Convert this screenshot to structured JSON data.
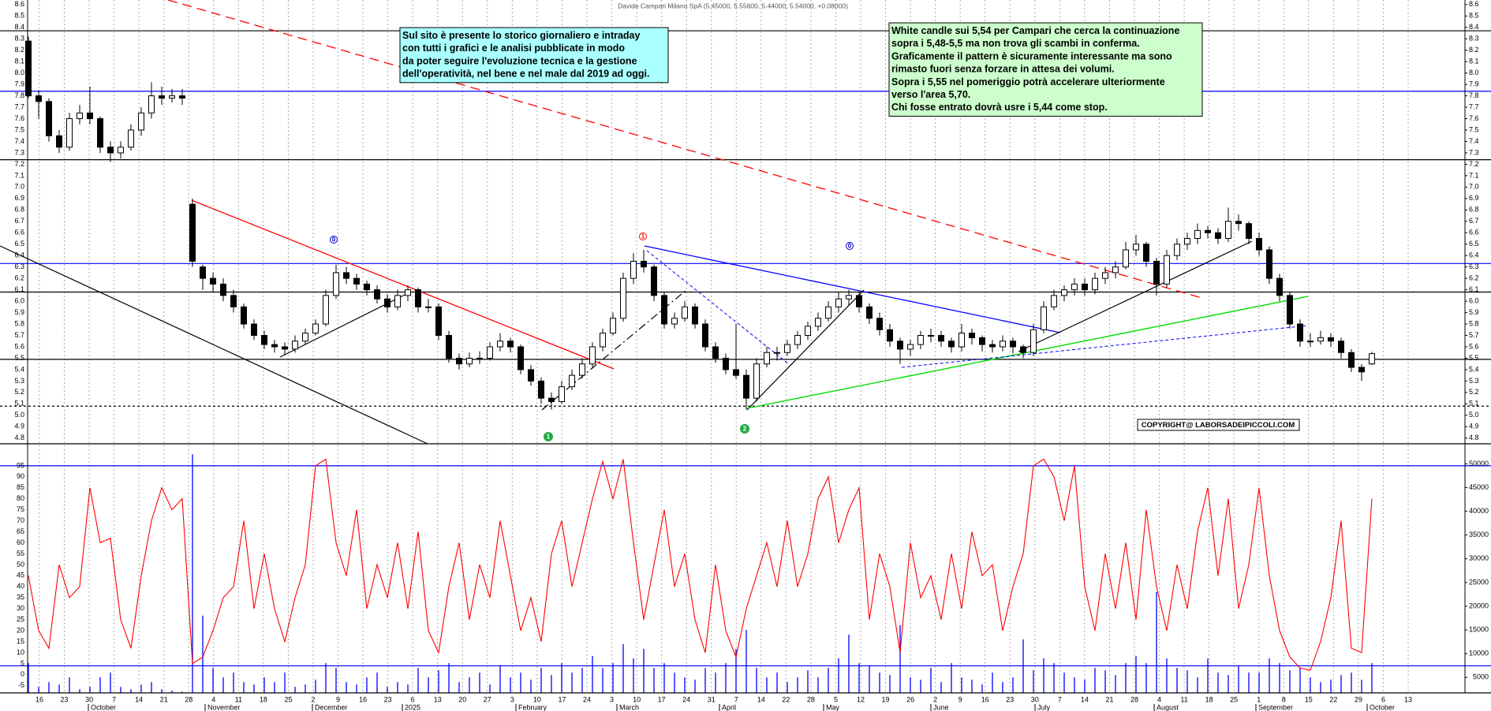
{
  "chart_data": {
    "type": "candlestick",
    "title": "Davide Campari Milano SpA (5.45000, 5.55600, 5.44000, 5.54000, +0.08000)",
    "up_color": "#ffffff",
    "down_color": "#000000",
    "ylim": [
      4.75,
      8.64
    ],
    "yticks": [
      4.8,
      4.9,
      {
        "value": 5.0,
        "label": "5.0"
      },
      5.1,
      5.2,
      5.3,
      5.4,
      5.5,
      5.6,
      5.7,
      5.8,
      5.9,
      {
        "value": 6.0,
        "label": "6.0"
      },
      6.1,
      6.2,
      6.3,
      6.4,
      6.5,
      6.6,
      6.7,
      6.8,
      6.9,
      {
        "value": 7.0,
        "label": "7.0"
      },
      7.1,
      7.2,
      7.3,
      7.4,
      7.5,
      7.6,
      7.7,
      7.8,
      7.9,
      {
        "value": 8.0,
        "label": "8.0"
      },
      8.1,
      8.2,
      8.3,
      8.4,
      8.5,
      8.6
    ],
    "levels": [
      {
        "value": 8.37,
        "color": "#000000",
        "style": "solid"
      },
      {
        "value": 7.84,
        "color": "#0000ff",
        "style": "solid"
      },
      {
        "value": 7.24,
        "color": "#000000",
        "style": "solid"
      },
      {
        "value": 6.33,
        "color": "#0000ff",
        "style": "solid"
      },
      {
        "value": 6.08,
        "color": "#000000",
        "style": "solid"
      },
      {
        "value": 5.49,
        "color": "#000000",
        "style": "solid"
      },
      {
        "value": 5.08,
        "color": "#000000",
        "style": "dashed"
      }
    ],
    "ohlc": [
      [
        8.28,
        8.32,
        7.78,
        7.8
      ],
      [
        7.8,
        7.85,
        7.6,
        7.75
      ],
      [
        7.75,
        7.78,
        7.4,
        7.45
      ],
      [
        7.45,
        7.5,
        7.3,
        7.35
      ],
      [
        7.35,
        7.65,
        7.32,
        7.6
      ],
      [
        7.6,
        7.72,
        7.55,
        7.65
      ],
      [
        7.65,
        7.88,
        7.55,
        7.6
      ],
      [
        7.6,
        7.62,
        7.3,
        7.35
      ],
      [
        7.35,
        7.4,
        7.22,
        7.3
      ],
      [
        7.3,
        7.4,
        7.25,
        7.35
      ],
      [
        7.35,
        7.55,
        7.32,
        7.5
      ],
      [
        7.5,
        7.7,
        7.45,
        7.65
      ],
      [
        7.65,
        7.92,
        7.6,
        7.8
      ],
      [
        7.8,
        7.88,
        7.72,
        7.78
      ],
      [
        7.78,
        7.86,
        7.74,
        7.8
      ],
      [
        7.8,
        7.86,
        7.72,
        7.78
      ],
      [
        6.85,
        6.9,
        6.3,
        6.35
      ],
      [
        6.3,
        6.32,
        6.1,
        6.2
      ],
      [
        6.2,
        6.25,
        6.08,
        6.15
      ],
      [
        6.15,
        6.2,
        6.0,
        6.05
      ],
      [
        6.05,
        6.1,
        5.9,
        5.95
      ],
      [
        5.95,
        5.98,
        5.76,
        5.8
      ],
      [
        5.8,
        5.84,
        5.66,
        5.7
      ],
      [
        5.7,
        5.74,
        5.58,
        5.62
      ],
      [
        5.62,
        5.66,
        5.55,
        5.6
      ],
      [
        5.6,
        5.64,
        5.53,
        5.58
      ],
      [
        5.58,
        5.7,
        5.55,
        5.65
      ],
      [
        5.65,
        5.76,
        5.62,
        5.72
      ],
      [
        5.72,
        5.84,
        5.7,
        5.8
      ],
      [
        5.8,
        6.1,
        5.78,
        6.05
      ],
      [
        6.05,
        6.32,
        6.02,
        6.25
      ],
      [
        6.25,
        6.3,
        6.15,
        6.2
      ],
      [
        6.2,
        6.24,
        6.1,
        6.15
      ],
      [
        6.15,
        6.18,
        6.05,
        6.1
      ],
      [
        6.1,
        6.14,
        5.98,
        6.02
      ],
      [
        6.02,
        6.06,
        5.9,
        5.95
      ],
      [
        5.95,
        6.1,
        5.92,
        6.05
      ],
      [
        6.05,
        6.14,
        6.0,
        6.1
      ],
      [
        6.1,
        6.12,
        5.9,
        5.95
      ],
      [
        5.95,
        6.02,
        5.9,
        5.95
      ],
      [
        5.95,
        5.98,
        5.66,
        5.7
      ],
      [
        5.7,
        5.74,
        5.46,
        5.5
      ],
      [
        5.5,
        5.54,
        5.4,
        5.45
      ],
      [
        5.45,
        5.55,
        5.42,
        5.5
      ],
      [
        5.5,
        5.56,
        5.45,
        5.5
      ],
      [
        5.5,
        5.64,
        5.48,
        5.6
      ],
      [
        5.6,
        5.72,
        5.56,
        5.65
      ],
      [
        5.65,
        5.68,
        5.55,
        5.6
      ],
      [
        5.6,
        5.62,
        5.36,
        5.4
      ],
      [
        5.4,
        5.44,
        5.26,
        5.3
      ],
      [
        5.3,
        5.33,
        5.1,
        5.15
      ],
      [
        5.15,
        5.2,
        5.05,
        5.12
      ],
      [
        5.12,
        5.3,
        5.1,
        5.25
      ],
      [
        5.25,
        5.4,
        5.22,
        5.35
      ],
      [
        5.35,
        5.5,
        5.32,
        5.45
      ],
      [
        5.45,
        5.64,
        5.42,
        5.6
      ],
      [
        5.6,
        5.76,
        5.56,
        5.72
      ],
      [
        5.72,
        5.9,
        5.7,
        5.85
      ],
      [
        5.85,
        6.25,
        5.82,
        6.2
      ],
      [
        6.2,
        6.42,
        6.15,
        6.35
      ],
      [
        6.35,
        6.45,
        6.25,
        6.3
      ],
      [
        6.3,
        6.32,
        6.0,
        6.05
      ],
      [
        6.05,
        6.08,
        5.76,
        5.8
      ],
      [
        5.8,
        5.9,
        5.76,
        5.85
      ],
      [
        5.85,
        6.0,
        5.82,
        5.95
      ],
      [
        5.95,
        5.98,
        5.76,
        5.8
      ],
      [
        5.8,
        5.84,
        5.56,
        5.6
      ],
      [
        5.6,
        5.64,
        5.46,
        5.5
      ],
      [
        5.5,
        5.54,
        5.36,
        5.4
      ],
      [
        5.4,
        5.8,
        5.32,
        5.35
      ],
      [
        5.35,
        5.4,
        5.05,
        5.15
      ],
      [
        5.15,
        5.5,
        5.12,
        5.45
      ],
      [
        5.45,
        5.6,
        5.42,
        5.55
      ],
      [
        5.55,
        5.6,
        5.48,
        5.55
      ],
      [
        5.55,
        5.66,
        5.52,
        5.62
      ],
      [
        5.62,
        5.74,
        5.58,
        5.7
      ],
      [
        5.7,
        5.82,
        5.66,
        5.78
      ],
      [
        5.78,
        5.9,
        5.74,
        5.85
      ],
      [
        5.85,
        6.0,
        5.82,
        5.95
      ],
      [
        5.95,
        6.08,
        5.9,
        6.02
      ],
      [
        6.02,
        6.1,
        5.96,
        6.05
      ],
      [
        6.05,
        6.08,
        5.9,
        5.95
      ],
      [
        5.95,
        5.98,
        5.8,
        5.85
      ],
      [
        5.85,
        5.9,
        5.7,
        5.75
      ],
      [
        5.75,
        5.8,
        5.6,
        5.65
      ],
      [
        5.65,
        5.68,
        5.45,
        5.58
      ],
      [
        5.58,
        5.66,
        5.52,
        5.62
      ],
      [
        5.62,
        5.74,
        5.58,
        5.7
      ],
      [
        5.7,
        5.76,
        5.64,
        5.7
      ],
      [
        5.7,
        5.74,
        5.6,
        5.65
      ],
      [
        5.65,
        5.68,
        5.55,
        5.6
      ],
      [
        5.6,
        5.8,
        5.56,
        5.72
      ],
      [
        5.72,
        5.76,
        5.62,
        5.68
      ],
      [
        5.68,
        5.7,
        5.56,
        5.62
      ],
      [
        5.62,
        5.66,
        5.55,
        5.6
      ],
      [
        5.6,
        5.7,
        5.56,
        5.65
      ],
      [
        5.65,
        5.68,
        5.54,
        5.6
      ],
      [
        5.6,
        5.62,
        5.5,
        5.55
      ],
      [
        5.55,
        5.8,
        5.52,
        5.75
      ],
      [
        5.75,
        6.0,
        5.72,
        5.95
      ],
      [
        5.95,
        6.1,
        5.92,
        6.05
      ],
      [
        6.05,
        6.14,
        6.0,
        6.1
      ],
      [
        6.1,
        6.2,
        6.05,
        6.15
      ],
      [
        6.15,
        6.2,
        6.05,
        6.1
      ],
      [
        6.1,
        6.25,
        6.06,
        6.2
      ],
      [
        6.2,
        6.3,
        6.15,
        6.25
      ],
      [
        6.25,
        6.35,
        6.2,
        6.3
      ],
      [
        6.3,
        6.52,
        6.28,
        6.45
      ],
      [
        6.45,
        6.58,
        6.4,
        6.5
      ],
      [
        6.5,
        6.52,
        6.3,
        6.35
      ],
      [
        6.35,
        6.38,
        6.05,
        6.15
      ],
      [
        6.15,
        6.45,
        6.12,
        6.4
      ],
      [
        6.4,
        6.55,
        6.36,
        6.5
      ],
      [
        6.5,
        6.6,
        6.45,
        6.55
      ],
      [
        6.55,
        6.68,
        6.5,
        6.62
      ],
      [
        6.62,
        6.66,
        6.55,
        6.6
      ],
      [
        6.6,
        6.64,
        6.5,
        6.55
      ],
      [
        6.55,
        6.82,
        6.52,
        6.7
      ],
      [
        6.7,
        6.76,
        6.62,
        6.68
      ],
      [
        6.68,
        6.7,
        6.5,
        6.55
      ],
      [
        6.55,
        6.6,
        6.4,
        6.45
      ],
      [
        6.45,
        6.48,
        6.15,
        6.2
      ],
      [
        6.2,
        6.24,
        6.0,
        6.05
      ],
      [
        6.05,
        6.08,
        5.76,
        5.8
      ],
      [
        5.8,
        5.84,
        5.6,
        5.65
      ],
      [
        5.65,
        5.72,
        5.6,
        5.65
      ],
      [
        5.65,
        5.74,
        5.62,
        5.68
      ],
      [
        5.68,
        5.72,
        5.6,
        5.65
      ],
      [
        5.65,
        5.68,
        5.5,
        5.55
      ],
      [
        5.55,
        5.58,
        5.38,
        5.42
      ],
      [
        5.42,
        5.45,
        5.3,
        5.38
      ],
      [
        5.45,
        5.556,
        5.44,
        5.54
      ]
    ],
    "oscillator": {
      "color": "#ff0000",
      "ylim": [
        -8.3,
        105
      ],
      "yticks": [
        -5,
        0,
        5,
        10,
        15,
        20,
        25,
        30,
        35,
        40,
        45,
        50,
        55,
        60,
        65,
        70,
        75,
        80,
        85,
        90,
        95
      ],
      "levels": [
        {
          "value": 95,
          "color": "#0000ff"
        },
        {
          "value": 4,
          "color": "#0000ff"
        }
      ],
      "values": [
        45,
        20,
        12,
        50,
        35,
        40,
        85,
        60,
        62,
        25,
        12,
        45,
        70,
        85,
        75,
        80,
        5,
        8,
        20,
        35,
        40,
        70,
        30,
        55,
        30,
        15,
        35,
        50,
        95,
        98,
        60,
        45,
        75,
        30,
        50,
        35,
        60,
        30,
        65,
        20,
        10,
        40,
        60,
        25,
        50,
        35,
        70,
        45,
        20,
        35,
        15,
        55,
        70,
        40,
        60,
        80,
        97,
        80,
        98,
        60,
        25,
        50,
        75,
        40,
        55,
        25,
        10,
        50,
        20,
        8,
        30,
        45,
        60,
        40,
        70,
        40,
        55,
        80,
        90,
        60,
        75,
        85,
        25,
        55,
        40,
        10,
        60,
        35,
        45,
        25,
        55,
        30,
        65,
        45,
        50,
        20,
        40,
        55,
        95,
        98,
        90,
        70,
        95,
        40,
        20,
        55,
        30,
        60,
        25,
        75,
        40,
        20,
        50,
        30,
        65,
        85,
        45,
        80,
        30,
        50,
        85,
        45,
        20,
        8,
        3,
        2,
        15,
        35,
        70,
        12,
        10,
        80
      ]
    },
    "volume": {
      "color": "#0000ff",
      "y2lim": [
        1730,
        54230
      ],
      "y2ticks": [
        5000,
        10000,
        15000,
        20000,
        25000,
        30000,
        35000,
        40000,
        45000,
        50000
      ],
      "values": [
        8000,
        3000,
        4000,
        3500,
        5000,
        2500,
        3000,
        5000,
        6000,
        3000,
        2500,
        3500,
        4000,
        2500,
        2200,
        2000,
        52000,
        18000,
        7000,
        5000,
        6000,
        4000,
        3500,
        5000,
        4000,
        6000,
        3000,
        3500,
        4500,
        8000,
        7000,
        4000,
        3500,
        5000,
        6000,
        3000,
        4000,
        3500,
        7000,
        5000,
        6500,
        8000,
        4000,
        5000,
        6000,
        3500,
        7500,
        5000,
        6000,
        4500,
        7000,
        5500,
        8000,
        6000,
        7000,
        9500,
        7000,
        8000,
        12000,
        9000,
        11000,
        7000,
        8000,
        6000,
        5000,
        4500,
        7000,
        6000,
        8000,
        11000,
        15000,
        7000,
        5000,
        6000,
        4000,
        5000,
        6500,
        5000,
        7000,
        9000,
        14000,
        8000,
        7500,
        6000,
        5500,
        16000,
        5000,
        4500,
        7000,
        4000,
        8000,
        5000,
        4500,
        3500,
        6000,
        4000,
        5000,
        13000,
        6500,
        9000,
        8000,
        6000,
        5000,
        4500,
        7000,
        6500,
        5500,
        8000,
        9500,
        8000,
        23000,
        9000,
        7000,
        6500,
        5000,
        9000,
        6000,
        5500,
        7500,
        6000,
        6000,
        9000,
        8000,
        6500,
        7000,
        5000,
        4000,
        4500,
        5500,
        6000,
        4500,
        8000
      ]
    },
    "x_labels": [
      "16",
      "23",
      "30",
      "7",
      "14",
      "21",
      "28",
      "4",
      "11",
      "18",
      "25",
      "2",
      "9",
      "16",
      "23",
      "6",
      "13",
      "20",
      "27",
      "3",
      "10",
      "17",
      "24",
      "3",
      "10",
      "17",
      "24",
      "31",
      "7",
      "14",
      "22",
      "28",
      "5",
      "12",
      "19",
      "26",
      "2",
      "9",
      "16",
      "23",
      "30",
      "7",
      "14",
      "21",
      "28",
      "4",
      "11",
      "18",
      "25",
      "1",
      "8",
      "15",
      "22",
      "29",
      "6",
      "13"
    ],
    "months": [
      "October",
      "November",
      "December",
      "2025",
      "February",
      "March",
      "April",
      "May",
      "June",
      "July",
      "August",
      "September",
      "October"
    ],
    "markers": [
      {
        "text": "0",
        "color": "#0000cc"
      },
      {
        "text": "0",
        "color": "#0000cc"
      },
      {
        "text": "1",
        "color": "#ff0000"
      },
      {
        "text": "1",
        "color": "#22aa44"
      },
      {
        "text": "2",
        "color": "#22aa44"
      }
    ],
    "annotations": [
      {
        "background": "#aaffff",
        "lines": [
          "Sul sito è presente lo storico giornaliero e intraday",
          "con tutti i grafici e le analisi pubblicate in modo",
          "da poter seguire l'evoluzione tecnica e la gestione",
          "dell'operatività, nel bene e nel male dal 2019 ad oggi."
        ]
      },
      {
        "background": "#ccffcc",
        "lines": [
          "White candle sui 5,54 per Campari che cerca la continuazione",
          "sopra i 5,48-5,5 ma non trova gli scambi in conferma.",
          "Graficamente il pattern è sicuramente interessante ma sono",
          "rimasto fuori senza forzare in attesa dei volumi.",
          "Sopra i 5,55 nel pomeriggio potrà accelerare ulteriormente",
          "verso l'area 5,70.",
          "Chi fosse entrato dovrà usre i 5,44 come stop."
        ]
      }
    ],
    "copyright": "COPYRIGHT@ LABORSADEIPICCOLI.COM"
  }
}
